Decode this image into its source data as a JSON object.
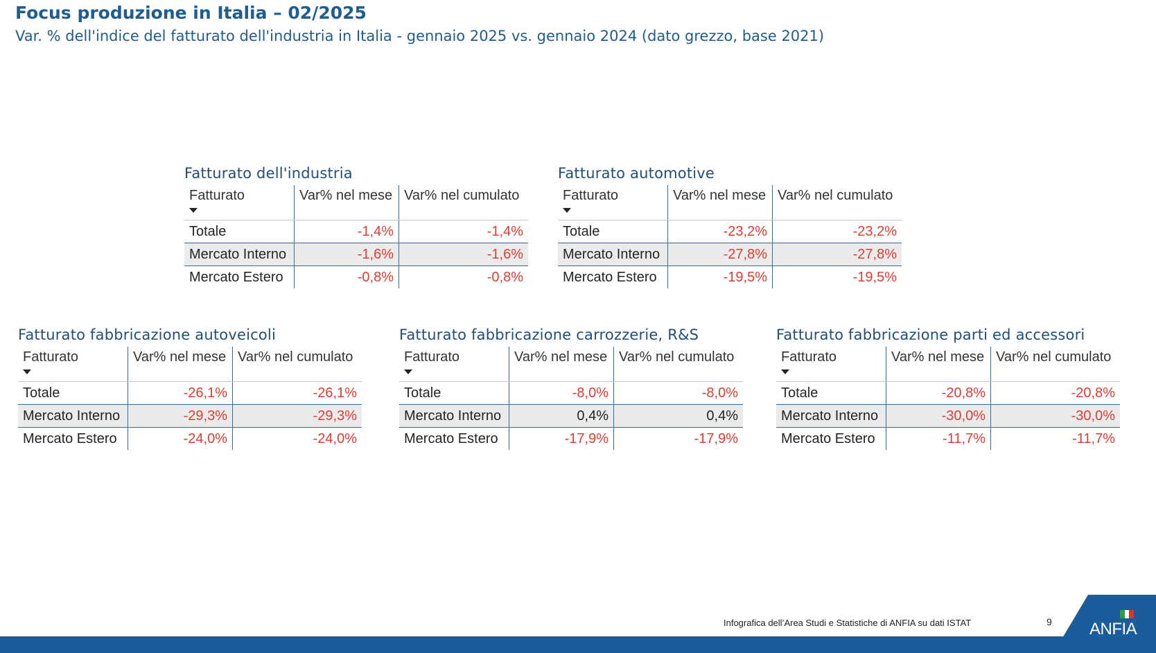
{
  "header": {
    "title": "Focus produzione in Italia – 02/2025",
    "subtitle": "Var. % dell'indice del fatturato dell'industria in Italia - gennaio 2025 vs. gennaio 2024 (dato grezzo, base 2021)"
  },
  "columns": [
    "Fatturato",
    "Var% nel mese",
    "Var% nel cumulato"
  ],
  "tables": [
    {
      "title": "Fatturato dell'industria",
      "rows": [
        {
          "label": "Totale",
          "mese": "-1,4%",
          "cumulato": "-1,4%"
        },
        {
          "label": "Mercato Interno",
          "mese": "-1,6%",
          "cumulato": "-1,6%"
        },
        {
          "label": "Mercato Estero",
          "mese": "-0,8%",
          "cumulato": "-0,8%"
        }
      ]
    },
    {
      "title": "Fatturato automotive",
      "rows": [
        {
          "label": "Totale",
          "mese": "-23,2%",
          "cumulato": "-23,2%"
        },
        {
          "label": "Mercato Interno",
          "mese": "-27,8%",
          "cumulato": "-27,8%"
        },
        {
          "label": "Mercato Estero",
          "mese": "-19,5%",
          "cumulato": "-19,5%"
        }
      ]
    },
    {
      "title": "Fatturato fabbricazione autoveicoli",
      "rows": [
        {
          "label": "Totale",
          "mese": "-26,1%",
          "cumulato": "-26,1%"
        },
        {
          "label": "Mercato Interno",
          "mese": "-29,3%",
          "cumulato": "-29,3%"
        },
        {
          "label": "Mercato Estero",
          "mese": "-24,0%",
          "cumulato": "-24,0%"
        }
      ]
    },
    {
      "title": "Fatturato fabbricazione carrozzerie, R&S",
      "rows": [
        {
          "label": "Totale",
          "mese": "-8,0%",
          "cumulato": "-8,0%"
        },
        {
          "label": "Mercato Interno",
          "mese": "0,4%",
          "cumulato": "0,4%"
        },
        {
          "label": "Mercato Estero",
          "mese": "-17,9%",
          "cumulato": "-17,9%"
        }
      ]
    },
    {
      "title": "Fatturato fabbricazione parti ed accessori",
      "rows": [
        {
          "label": "Totale",
          "mese": "-20,8%",
          "cumulato": "-20,8%"
        },
        {
          "label": "Mercato Interno",
          "mese": "-30,0%",
          "cumulato": "-30,0%"
        },
        {
          "label": "Mercato Estero",
          "mese": "-11,7%",
          "cumulato": "-11,7%"
        }
      ]
    }
  ],
  "footer": {
    "caption": "Infografica dell’Area Studi e Statistiche di ANFIA su dati ISTAT",
    "page_number": "9",
    "logo_text": "ANFIA",
    "logo_icon": "anfia-logo-icon",
    "flag_icon": "italian-flag-icon"
  },
  "colors": {
    "title": "#1f5c8f",
    "panel_title": "#1f4e79",
    "negative": "#e03c31",
    "positive": "#252423",
    "row_highlight": "#ebebeb",
    "rule": "#2e6da4",
    "footer_bar": "#1a5c9c",
    "flag": [
      "#2e9d45",
      "#ffffff",
      "#d9342b"
    ]
  }
}
